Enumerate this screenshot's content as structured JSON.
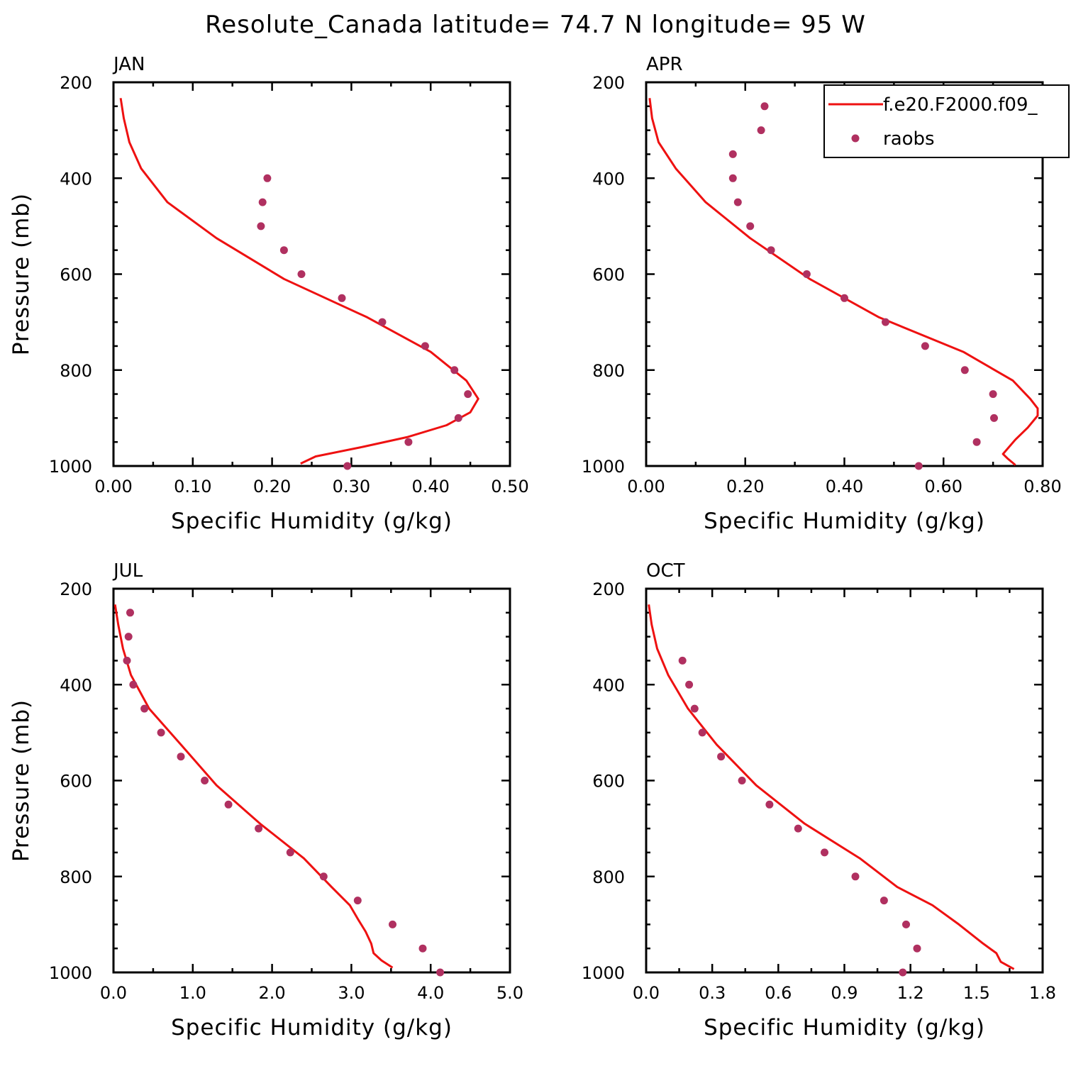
{
  "title": "Resolute_Canada  latitude= 74.7 N longitude= 95 W",
  "legend": {
    "model_label": "f.e20.F2000.f09_",
    "obs_label": "raobs",
    "model_color": "#ee1111",
    "obs_color": "#b03060",
    "location": "top-right of APR panel"
  },
  "chart_data": [
    {
      "type": "line",
      "panel": "JAN",
      "xlabel": "Specific Humidity (g/kg)",
      "ylabel": "Pressure (mb)",
      "xlim": [
        0,
        0.5
      ],
      "ylim": [
        1000,
        200
      ],
      "xticks": [
        "0.00",
        "0.10",
        "0.20",
        "0.30",
        "0.40",
        "0.50"
      ],
      "yticks": [
        "200",
        "400",
        "600",
        "800",
        "1000"
      ],
      "series": [
        {
          "name": "f.e20.F2000.f09_",
          "kind": "line",
          "x": [
            0.009,
            0.013,
            0.02,
            0.035,
            0.068,
            0.13,
            0.215,
            0.32,
            0.4,
            0.445,
            0.46,
            0.45,
            0.42,
            0.37,
            0.315,
            0.255,
            0.236
          ],
          "y": [
            233,
            275,
            325,
            380,
            450,
            525,
            610,
            690,
            762,
            822,
            860,
            888,
            915,
            940,
            960,
            980,
            995
          ]
        },
        {
          "name": "raobs",
          "kind": "scatter",
          "x": [
            0.194,
            0.188,
            0.186,
            0.215,
            0.237,
            0.288,
            0.339,
            0.393,
            0.43,
            0.447,
            0.435,
            0.372,
            0.295
          ],
          "y": [
            400,
            450,
            500,
            550,
            600,
            650,
            700,
            750,
            800,
            850,
            900,
            950,
            1000
          ]
        }
      ]
    },
    {
      "type": "line",
      "panel": "APR",
      "xlabel": "Specific Humidity (g/kg)",
      "ylabel": "",
      "xlim": [
        0,
        0.8
      ],
      "ylim": [
        1000,
        200
      ],
      "xticks": [
        "0.00",
        "0.20",
        "0.40",
        "0.60",
        "0.80"
      ],
      "yticks": [
        "200",
        "400",
        "600",
        "800",
        "1000"
      ],
      "series": [
        {
          "name": "f.e20.F2000.f09_",
          "kind": "line",
          "x": [
            0.007,
            0.012,
            0.025,
            0.06,
            0.12,
            0.21,
            0.33,
            0.47,
            0.64,
            0.74,
            0.775,
            0.79,
            0.79,
            0.77,
            0.745,
            0.72,
            0.73,
            0.745
          ],
          "y": [
            233,
            275,
            325,
            380,
            450,
            525,
            610,
            690,
            762,
            822,
            860,
            880,
            895,
            920,
            945,
            975,
            985,
            998
          ]
        },
        {
          "name": "raobs",
          "kind": "scatter",
          "x": [
            0.239,
            0.232,
            0.175,
            0.175,
            0.185,
            0.21,
            0.252,
            0.324,
            0.4,
            0.483,
            0.563,
            0.643,
            0.7,
            0.702,
            0.667,
            0.55
          ],
          "y": [
            250,
            300,
            350,
            400,
            450,
            500,
            550,
            600,
            650,
            700,
            750,
            800,
            850,
            900,
            950,
            1000
          ]
        }
      ]
    },
    {
      "type": "line",
      "panel": "JUL",
      "xlabel": "Specific Humidity (g/kg)",
      "ylabel": "Pressure (mb)",
      "xlim": [
        0,
        5.0
      ],
      "ylim": [
        1000,
        200
      ],
      "xticks": [
        "0.0",
        "1.0",
        "2.0",
        "3.0",
        "4.0",
        "5.0"
      ],
      "yticks": [
        "200",
        "400",
        "600",
        "800",
        "1000"
      ],
      "series": [
        {
          "name": "f.e20.F2000.f09_",
          "kind": "line",
          "x": [
            0.02,
            0.06,
            0.12,
            0.22,
            0.45,
            0.85,
            1.3,
            1.85,
            2.4,
            2.75,
            2.98,
            3.08,
            3.18,
            3.25,
            3.28,
            3.38,
            3.52
          ],
          "y": [
            233,
            275,
            325,
            380,
            450,
            525,
            610,
            690,
            762,
            822,
            860,
            888,
            915,
            940,
            960,
            975,
            990
          ]
        },
        {
          "name": "raobs",
          "kind": "scatter",
          "x": [
            0.21,
            0.19,
            0.17,
            0.25,
            0.39,
            0.6,
            0.85,
            1.15,
            1.45,
            1.83,
            2.23,
            2.65,
            3.08,
            3.52,
            3.9,
            4.12
          ],
          "y": [
            250,
            300,
            350,
            400,
            450,
            500,
            550,
            600,
            650,
            700,
            750,
            800,
            850,
            900,
            950,
            1000
          ]
        }
      ]
    },
    {
      "type": "line",
      "panel": "OCT",
      "xlabel": "Specific Humidity (g/kg)",
      "ylabel": "",
      "xlim": [
        0,
        1.8
      ],
      "ylim": [
        1000,
        200
      ],
      "xticks": [
        "0.0",
        "0.3",
        "0.6",
        "0.9",
        "1.2",
        "1.5",
        "1.8"
      ],
      "yticks": [
        "200",
        "400",
        "600",
        "800",
        "1000"
      ],
      "series": [
        {
          "name": "f.e20.F2000.f09_",
          "kind": "line",
          "x": [
            0.012,
            0.025,
            0.05,
            0.1,
            0.19,
            0.32,
            0.5,
            0.72,
            0.97,
            1.14,
            1.3,
            1.42,
            1.53,
            1.59,
            1.61,
            1.67
          ],
          "y": [
            233,
            275,
            325,
            380,
            450,
            525,
            610,
            690,
            762,
            822,
            860,
            900,
            940,
            960,
            978,
            993
          ]
        },
        {
          "name": "raobs",
          "kind": "scatter",
          "x": [
            0.165,
            0.195,
            0.22,
            0.255,
            0.34,
            0.435,
            0.56,
            0.69,
            0.81,
            0.95,
            1.08,
            1.18,
            1.23,
            1.165
          ],
          "y": [
            350,
            400,
            450,
            500,
            550,
            600,
            650,
            700,
            750,
            800,
            850,
            900,
            950,
            1000
          ]
        }
      ]
    }
  ]
}
